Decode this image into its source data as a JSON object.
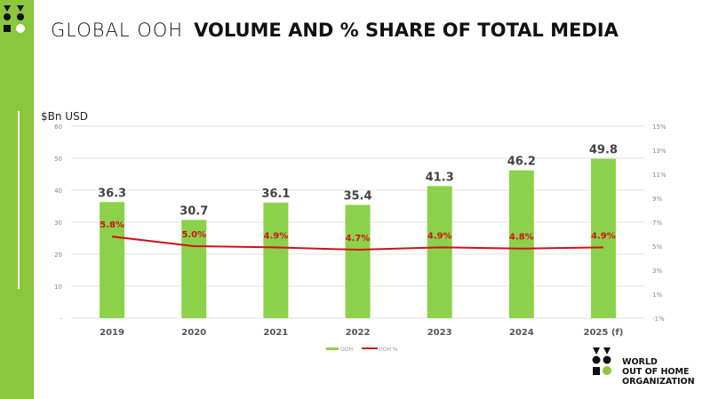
{
  "title": {
    "light": "GLOBAL OOH",
    "bold": "VOLUME AND % SHARE OF TOTAL MEDIA"
  },
  "brand": {
    "line1": "WORLD",
    "line2": "OUT OF HOME",
    "line3": "ORGANIZATION"
  },
  "colors": {
    "sidebar": "#8cc63f",
    "bar": "#8cd14a",
    "line": "#d0121b"
  },
  "chart_data": {
    "type": "bar+line",
    "categories": [
      "2019",
      "2020",
      "2021",
      "2022",
      "2023",
      "2024",
      "2025 (f)"
    ],
    "series": [
      {
        "name": "OOH",
        "type": "bar",
        "axis": "left",
        "values": [
          36.3,
          30.7,
          36.1,
          35.4,
          41.3,
          46.2,
          49.8
        ],
        "labels": [
          "36.3",
          "30.7",
          "36.1",
          "35.4",
          "41.3",
          "46.2",
          "49.8"
        ]
      },
      {
        "name": "OOH %",
        "type": "line",
        "axis": "right",
        "values": [
          5.8,
          5.0,
          4.9,
          4.7,
          4.9,
          4.8,
          4.9
        ],
        "labels": [
          "5.8%",
          "5.0%",
          "4.9%",
          "4.7%",
          "4.9%",
          "4.8%",
          "4.9%"
        ]
      }
    ],
    "ylabel": "$Bn USD",
    "ylim": [
      0,
      60
    ],
    "yticks": [
      "-",
      "10",
      "20",
      "30",
      "40",
      "50",
      "60"
    ],
    "y2lim": [
      -1,
      15
    ],
    "y2ticks": [
      "-1%",
      "1%",
      "3%",
      "5%",
      "7%",
      "9%",
      "11%",
      "13%",
      "15%"
    ],
    "grid": true,
    "legend": "bottom"
  }
}
